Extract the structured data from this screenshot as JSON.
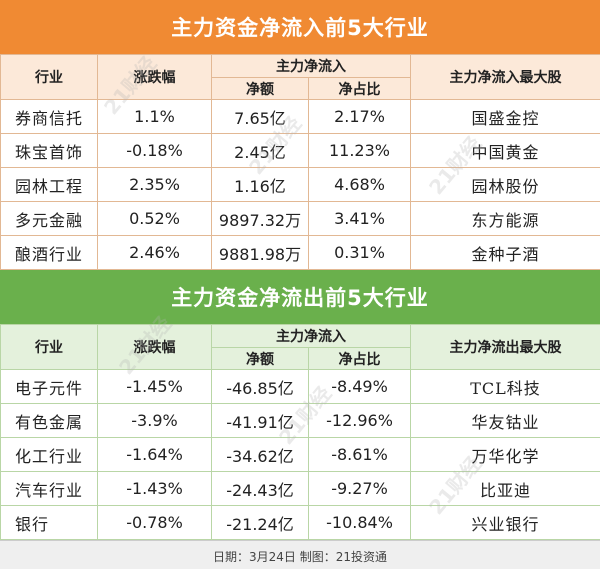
{
  "inflow": {
    "title": "主力资金净流入前5大行业",
    "headers": {
      "industry": "行业",
      "change": "涨跌幅",
      "net_group": "主力净流入",
      "net_amount": "净额",
      "net_ratio": "净占比",
      "top_stock": "主力净流入最大股"
    },
    "rows": [
      {
        "industry": "券商信托",
        "change": "1.1%",
        "net": "7.65亿",
        "ratio": "2.17%",
        "stock": "国盛金控"
      },
      {
        "industry": "珠宝首饰",
        "change": "-0.18%",
        "net": "2.45亿",
        "ratio": "11.23%",
        "stock": "中国黄金"
      },
      {
        "industry": "园林工程",
        "change": "2.35%",
        "net": "1.16亿",
        "ratio": "4.68%",
        "stock": "园林股份"
      },
      {
        "industry": "多元金融",
        "change": "0.52%",
        "net": "9897.32万",
        "ratio": "3.41%",
        "stock": "东方能源"
      },
      {
        "industry": "酿酒行业",
        "change": "2.46%",
        "net": "9881.98万",
        "ratio": "0.31%",
        "stock": "金种子酒"
      }
    ]
  },
  "outflow": {
    "title": "主力资金净流出前5大行业",
    "headers": {
      "industry": "行业",
      "change": "涨跌幅",
      "net_group": "主力净流入",
      "net_amount": "净额",
      "net_ratio": "净占比",
      "top_stock": "主力净流出最大股"
    },
    "rows": [
      {
        "industry": "电子元件",
        "change": "-1.45%",
        "net": "-46.85亿",
        "ratio": "-8.49%",
        "stock": "TCL科技"
      },
      {
        "industry": "有色金属",
        "change": "-3.9%",
        "net": "-41.91亿",
        "ratio": "-12.96%",
        "stock": "华友钴业"
      },
      {
        "industry": "化工行业",
        "change": "-1.64%",
        "net": "-34.62亿",
        "ratio": "-8.61%",
        "stock": "万华化学"
      },
      {
        "industry": "汽车行业",
        "change": "-1.43%",
        "net": "-24.43亿",
        "ratio": "-9.27%",
        "stock": "比亚迪"
      },
      {
        "industry": "银行",
        "change": "-0.78%",
        "net": "-21.24亿",
        "ratio": "-10.84%",
        "stock": "兴业银行"
      }
    ]
  },
  "footer": "日期：3月24日  制图：21投资通",
  "watermark": "21财经"
}
